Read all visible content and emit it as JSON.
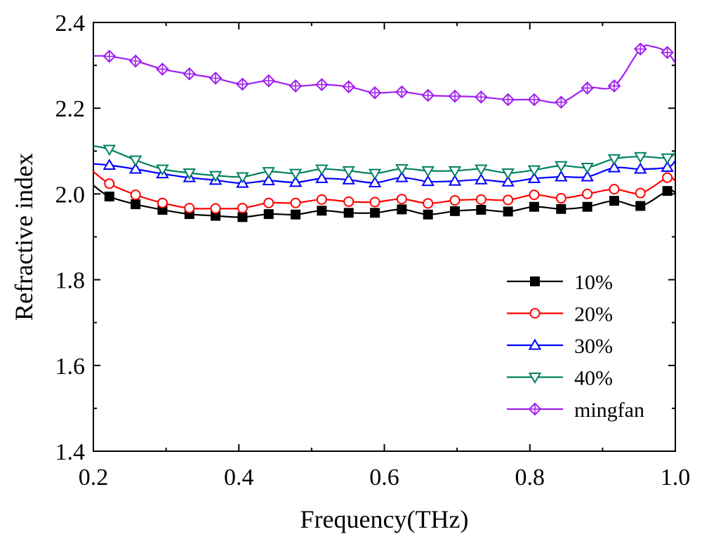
{
  "chart_data": {
    "type": "line",
    "title": "",
    "xlabel": "Frequency(THz)",
    "ylabel": "Refractive index",
    "xlim": [
      0.2,
      1.0
    ],
    "ylim": [
      1.4,
      2.4
    ],
    "xticks": [
      "0.2",
      "0.4",
      "0.6",
      "0.8",
      "1.0"
    ],
    "yticks": [
      "1.4",
      "1.6",
      "1.8",
      "2.0",
      "2.2",
      "2.4"
    ],
    "legend_position": "bottom-right",
    "grid": false,
    "series": [
      {
        "name": "10%",
        "color": "#000000",
        "marker": "square-filled",
        "line": [
          [
            0.2,
            2.02
          ],
          [
            0.222,
            1.994
          ],
          [
            0.258,
            1.976
          ],
          [
            0.295,
            1.963
          ],
          [
            0.332,
            1.953
          ],
          [
            0.368,
            1.949
          ],
          [
            0.405,
            1.946
          ],
          [
            0.441,
            1.953
          ],
          [
            0.478,
            1.952
          ],
          [
            0.514,
            1.961
          ],
          [
            0.551,
            1.956
          ],
          [
            0.587,
            1.956
          ],
          [
            0.624,
            1.964
          ],
          [
            0.66,
            1.952
          ],
          [
            0.697,
            1.96
          ],
          [
            0.733,
            1.963
          ],
          [
            0.77,
            1.959
          ],
          [
            0.806,
            1.97
          ],
          [
            0.843,
            1.965
          ],
          [
            0.879,
            1.97
          ],
          [
            0.916,
            1.984
          ],
          [
            0.952,
            1.972
          ],
          [
            0.989,
            2.007
          ],
          [
            1.0,
            2.003
          ]
        ],
        "markers": [
          [
            0.222,
            1.994
          ],
          [
            0.258,
            1.976
          ],
          [
            0.295,
            1.963
          ],
          [
            0.332,
            1.953
          ],
          [
            0.368,
            1.949
          ],
          [
            0.405,
            1.946
          ],
          [
            0.441,
            1.953
          ],
          [
            0.478,
            1.952
          ],
          [
            0.514,
            1.961
          ],
          [
            0.551,
            1.956
          ],
          [
            0.587,
            1.956
          ],
          [
            0.624,
            1.964
          ],
          [
            0.66,
            1.952
          ],
          [
            0.697,
            1.96
          ],
          [
            0.733,
            1.963
          ],
          [
            0.77,
            1.959
          ],
          [
            0.806,
            1.97
          ],
          [
            0.843,
            1.965
          ],
          [
            0.879,
            1.97
          ],
          [
            0.916,
            1.984
          ],
          [
            0.952,
            1.972
          ],
          [
            0.989,
            2.007
          ]
        ]
      },
      {
        "name": "20%",
        "color": "#ff0000",
        "marker": "circle-open",
        "line": [
          [
            0.2,
            2.052
          ],
          [
            0.222,
            2.024
          ],
          [
            0.258,
            1.998
          ],
          [
            0.295,
            1.979
          ],
          [
            0.332,
            1.967
          ],
          [
            0.368,
            1.966
          ],
          [
            0.405,
            1.967
          ],
          [
            0.441,
            1.979
          ],
          [
            0.478,
            1.979
          ],
          [
            0.514,
            1.987
          ],
          [
            0.551,
            1.982
          ],
          [
            0.587,
            1.981
          ],
          [
            0.624,
            1.988
          ],
          [
            0.66,
            1.978
          ],
          [
            0.697,
            1.985
          ],
          [
            0.733,
            1.987
          ],
          [
            0.77,
            1.986
          ],
          [
            0.806,
            1.998
          ],
          [
            0.843,
            1.99
          ],
          [
            0.879,
            2.0
          ],
          [
            0.916,
            2.011
          ],
          [
            0.952,
            2.002
          ],
          [
            0.989,
            2.038
          ],
          [
            1.0,
            2.03
          ]
        ],
        "markers": [
          [
            0.222,
            2.024
          ],
          [
            0.258,
            1.998
          ],
          [
            0.295,
            1.979
          ],
          [
            0.332,
            1.967
          ],
          [
            0.368,
            1.966
          ],
          [
            0.405,
            1.967
          ],
          [
            0.441,
            1.979
          ],
          [
            0.478,
            1.979
          ],
          [
            0.514,
            1.987
          ],
          [
            0.551,
            1.982
          ],
          [
            0.587,
            1.981
          ],
          [
            0.624,
            1.988
          ],
          [
            0.66,
            1.978
          ],
          [
            0.697,
            1.985
          ],
          [
            0.733,
            1.987
          ],
          [
            0.77,
            1.986
          ],
          [
            0.806,
            1.998
          ],
          [
            0.843,
            1.99
          ],
          [
            0.879,
            2.0
          ],
          [
            0.916,
            2.011
          ],
          [
            0.952,
            2.002
          ],
          [
            0.989,
            2.038
          ]
        ]
      },
      {
        "name": "30%",
        "color": "#0000ff",
        "marker": "triangle-up-open",
        "line": [
          [
            0.2,
            2.07
          ],
          [
            0.222,
            2.067
          ],
          [
            0.258,
            2.058
          ],
          [
            0.295,
            2.047
          ],
          [
            0.332,
            2.038
          ],
          [
            0.368,
            2.032
          ],
          [
            0.405,
            2.025
          ],
          [
            0.441,
            2.031
          ],
          [
            0.478,
            2.027
          ],
          [
            0.514,
            2.036
          ],
          [
            0.551,
            2.033
          ],
          [
            0.587,
            2.026
          ],
          [
            0.624,
            2.038
          ],
          [
            0.66,
            2.029
          ],
          [
            0.697,
            2.03
          ],
          [
            0.733,
            2.033
          ],
          [
            0.77,
            2.028
          ],
          [
            0.806,
            2.036
          ],
          [
            0.843,
            2.04
          ],
          [
            0.879,
            2.04
          ],
          [
            0.916,
            2.061
          ],
          [
            0.952,
            2.058
          ],
          [
            0.989,
            2.062
          ],
          [
            1.0,
            2.078
          ]
        ],
        "markers": [
          [
            0.222,
            2.067
          ],
          [
            0.258,
            2.058
          ],
          [
            0.295,
            2.047
          ],
          [
            0.332,
            2.038
          ],
          [
            0.368,
            2.032
          ],
          [
            0.405,
            2.025
          ],
          [
            0.441,
            2.031
          ],
          [
            0.478,
            2.027
          ],
          [
            0.514,
            2.036
          ],
          [
            0.551,
            2.033
          ],
          [
            0.587,
            2.026
          ],
          [
            0.624,
            2.038
          ],
          [
            0.66,
            2.029
          ],
          [
            0.697,
            2.03
          ],
          [
            0.733,
            2.033
          ],
          [
            0.77,
            2.028
          ],
          [
            0.806,
            2.036
          ],
          [
            0.843,
            2.04
          ],
          [
            0.879,
            2.04
          ],
          [
            0.916,
            2.061
          ],
          [
            0.952,
            2.058
          ],
          [
            0.989,
            2.062
          ]
        ]
      },
      {
        "name": "40%",
        "color": "#008060",
        "marker": "triangle-down-open",
        "line": [
          [
            0.2,
            2.112
          ],
          [
            0.222,
            2.104
          ],
          [
            0.258,
            2.079
          ],
          [
            0.295,
            2.058
          ],
          [
            0.332,
            2.049
          ],
          [
            0.368,
            2.043
          ],
          [
            0.405,
            2.04
          ],
          [
            0.441,
            2.052
          ],
          [
            0.478,
            2.048
          ],
          [
            0.514,
            2.058
          ],
          [
            0.551,
            2.054
          ],
          [
            0.587,
            2.048
          ],
          [
            0.624,
            2.059
          ],
          [
            0.66,
            2.054
          ],
          [
            0.697,
            2.054
          ],
          [
            0.733,
            2.058
          ],
          [
            0.77,
            2.049
          ],
          [
            0.806,
            2.056
          ],
          [
            0.843,
            2.066
          ],
          [
            0.879,
            2.062
          ],
          [
            0.916,
            2.082
          ],
          [
            0.952,
            2.087
          ],
          [
            0.989,
            2.084
          ],
          [
            1.0,
            2.097
          ]
        ],
        "markers": [
          [
            0.222,
            2.104
          ],
          [
            0.258,
            2.079
          ],
          [
            0.295,
            2.058
          ],
          [
            0.332,
            2.049
          ],
          [
            0.368,
            2.043
          ],
          [
            0.405,
            2.04
          ],
          [
            0.441,
            2.052
          ],
          [
            0.478,
            2.048
          ],
          [
            0.514,
            2.058
          ],
          [
            0.551,
            2.054
          ],
          [
            0.587,
            2.048
          ],
          [
            0.624,
            2.059
          ],
          [
            0.66,
            2.054
          ],
          [
            0.697,
            2.054
          ],
          [
            0.733,
            2.058
          ],
          [
            0.77,
            2.049
          ],
          [
            0.806,
            2.056
          ],
          [
            0.843,
            2.066
          ],
          [
            0.879,
            2.062
          ],
          [
            0.916,
            2.082
          ],
          [
            0.952,
            2.087
          ],
          [
            0.989,
            2.084
          ]
        ]
      },
      {
        "name": "mingfan",
        "color": "#a020f0",
        "marker": "diamond-crossed",
        "line": [
          [
            0.2,
            2.322
          ],
          [
            0.222,
            2.321
          ],
          [
            0.258,
            2.31
          ],
          [
            0.295,
            2.291
          ],
          [
            0.332,
            2.28
          ],
          [
            0.368,
            2.27
          ],
          [
            0.405,
            2.256
          ],
          [
            0.441,
            2.264
          ],
          [
            0.478,
            2.252
          ],
          [
            0.514,
            2.255
          ],
          [
            0.551,
            2.25
          ],
          [
            0.587,
            2.236
          ],
          [
            0.624,
            2.238
          ],
          [
            0.66,
            2.23
          ],
          [
            0.697,
            2.228
          ],
          [
            0.733,
            2.226
          ],
          [
            0.77,
            2.22
          ],
          [
            0.806,
            2.22
          ],
          [
            0.843,
            2.214
          ],
          [
            0.879,
            2.247
          ],
          [
            0.916,
            2.252
          ],
          [
            0.952,
            2.338
          ],
          [
            0.97,
            2.343
          ],
          [
            0.989,
            2.33
          ],
          [
            1.0,
            2.305
          ]
        ],
        "markers": [
          [
            0.222,
            2.321
          ],
          [
            0.258,
            2.31
          ],
          [
            0.295,
            2.291
          ],
          [
            0.332,
            2.28
          ],
          [
            0.368,
            2.27
          ],
          [
            0.405,
            2.256
          ],
          [
            0.441,
            2.264
          ],
          [
            0.478,
            2.252
          ],
          [
            0.514,
            2.255
          ],
          [
            0.551,
            2.25
          ],
          [
            0.587,
            2.236
          ],
          [
            0.624,
            2.238
          ],
          [
            0.66,
            2.23
          ],
          [
            0.697,
            2.228
          ],
          [
            0.733,
            2.226
          ],
          [
            0.77,
            2.22
          ],
          [
            0.806,
            2.22
          ],
          [
            0.843,
            2.214
          ],
          [
            0.879,
            2.247
          ],
          [
            0.916,
            2.252
          ],
          [
            0.952,
            2.338
          ],
          [
            0.989,
            2.33
          ]
        ]
      }
    ]
  }
}
